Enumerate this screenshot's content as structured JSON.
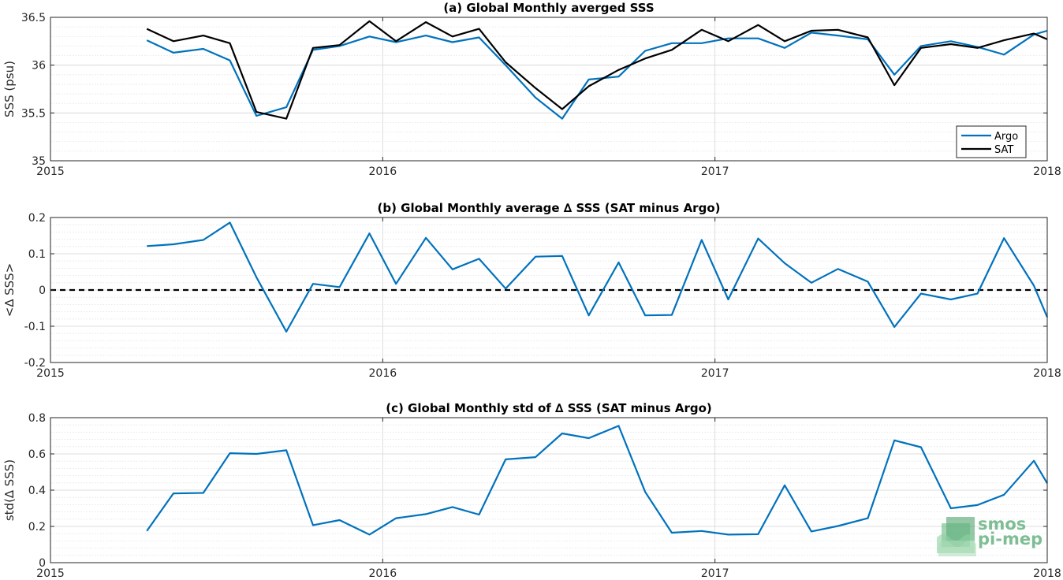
{
  "chart_data": [
    {
      "type": "line",
      "title": "(a) Global Monthly averged SSS",
      "ylabel": "SSS (psu)",
      "xlabel": "",
      "xlim": [
        2015,
        2018
      ],
      "ylim": [
        35,
        36.5
      ],
      "xticks": [
        "2015",
        "2016",
        "2017",
        "2018"
      ],
      "yticks": [
        "35",
        "35.5",
        "36",
        "36.5"
      ],
      "grid": true,
      "legend": "bottom-right",
      "x": [
        2015.29,
        2015.37,
        2015.46,
        2015.54,
        2015.62,
        2015.71,
        2015.79,
        2015.87,
        2015.96,
        2016.04,
        2016.13,
        2016.21,
        2016.29,
        2016.37,
        2016.46,
        2016.54,
        2016.62,
        2016.71,
        2016.79,
        2016.87,
        2016.96,
        2017.04,
        2017.13,
        2017.21,
        2017.29,
        2017.37,
        2017.46,
        2017.54,
        2017.62,
        2017.71,
        2017.79,
        2017.87,
        2017.96,
        2018.0
      ],
      "series": [
        {
          "name": "Argo",
          "color": "#0072bd",
          "values": [
            36.26,
            36.13,
            36.17,
            36.05,
            35.47,
            35.56,
            36.16,
            36.2,
            36.3,
            36.24,
            36.31,
            36.24,
            36.29,
            36.0,
            35.66,
            35.44,
            35.85,
            35.88,
            36.15,
            36.23,
            36.23,
            36.28,
            36.28,
            36.18,
            36.34,
            36.31,
            36.27,
            35.9,
            36.2,
            36.25,
            36.19,
            36.11,
            36.32,
            36.36
          ]
        },
        {
          "name": "SAT",
          "color": "#000000",
          "values": [
            36.38,
            36.25,
            36.31,
            36.23,
            35.51,
            35.44,
            36.18,
            36.21,
            36.46,
            36.25,
            36.45,
            36.3,
            36.38,
            36.03,
            35.76,
            35.54,
            35.78,
            35.95,
            36.07,
            36.16,
            36.37,
            36.25,
            36.42,
            36.25,
            36.36,
            36.37,
            36.29,
            35.79,
            36.18,
            36.22,
            36.18,
            36.26,
            36.33,
            36.27
          ]
        }
      ]
    },
    {
      "type": "line",
      "title": "(b) Global Monthly average ∆ SSS (SAT minus Argo)",
      "ylabel": "<∆ SSS>",
      "xlabel": "",
      "xlim": [
        2015,
        2018
      ],
      "ylim": [
        -0.2,
        0.2
      ],
      "xticks": [
        "2015",
        "2016",
        "2017",
        "2018"
      ],
      "yticks": [
        "-0.2",
        "-0.1",
        "0",
        "0.1",
        "0.2"
      ],
      "grid": true,
      "zero_line": 0,
      "x": [
        2015.29,
        2015.37,
        2015.46,
        2015.54,
        2015.62,
        2015.71,
        2015.79,
        2015.87,
        2015.96,
        2016.04,
        2016.13,
        2016.21,
        2016.29,
        2016.37,
        2016.46,
        2016.54,
        2016.62,
        2016.71,
        2016.79,
        2016.87,
        2016.96,
        2017.04,
        2017.13,
        2017.21,
        2017.29,
        2017.37,
        2017.46,
        2017.54,
        2017.62,
        2017.71,
        2017.79,
        2017.87,
        2017.96,
        2018.0
      ],
      "series": [
        {
          "color": "#0072bd",
          "values": [
            0.121,
            0.126,
            0.138,
            0.186,
            0.035,
            -0.115,
            0.017,
            0.008,
            0.156,
            0.017,
            0.144,
            0.057,
            0.086,
            0.004,
            0.092,
            0.094,
            -0.07,
            0.076,
            -0.07,
            -0.069,
            0.138,
            -0.026,
            0.142,
            0.074,
            0.02,
            0.058,
            0.023,
            -0.102,
            -0.01,
            -0.026,
            -0.01,
            0.143,
            0.012,
            -0.075
          ]
        }
      ]
    },
    {
      "type": "line",
      "title": "(c) Global Monthly std of ∆ SSS (SAT minus Argo)",
      "ylabel": "std(∆ SSS)",
      "xlabel": "",
      "xlim": [
        2015,
        2018
      ],
      "ylim": [
        0,
        0.8
      ],
      "xticks": [
        "2015",
        "2016",
        "2017",
        "2018"
      ],
      "yticks": [
        "0",
        "0.2",
        "0.4",
        "0.6",
        "0.8"
      ],
      "grid": true,
      "x": [
        2015.29,
        2015.37,
        2015.46,
        2015.54,
        2015.62,
        2015.71,
        2015.79,
        2015.87,
        2015.96,
        2016.04,
        2016.13,
        2016.21,
        2016.29,
        2016.37,
        2016.46,
        2016.54,
        2016.62,
        2016.71,
        2016.79,
        2016.87,
        2016.96,
        2017.04,
        2017.13,
        2017.21,
        2017.29,
        2017.37,
        2017.46,
        2017.54,
        2017.62,
        2017.71,
        2017.79,
        2017.87,
        2017.96,
        2018.0
      ],
      "series": [
        {
          "color": "#0072bd",
          "values": [
            0.175,
            0.382,
            0.385,
            0.604,
            0.6,
            0.62,
            0.207,
            0.235,
            0.155,
            0.245,
            0.268,
            0.307,
            0.265,
            0.57,
            0.582,
            0.713,
            0.687,
            0.755,
            0.39,
            0.165,
            0.175,
            0.155,
            0.157,
            0.427,
            0.172,
            0.202,
            0.245,
            0.675,
            0.637,
            0.3,
            0.318,
            0.375,
            0.562,
            0.438
          ]
        }
      ]
    }
  ],
  "logo": {
    "line1": "smos",
    "line2": "pi-mep"
  }
}
